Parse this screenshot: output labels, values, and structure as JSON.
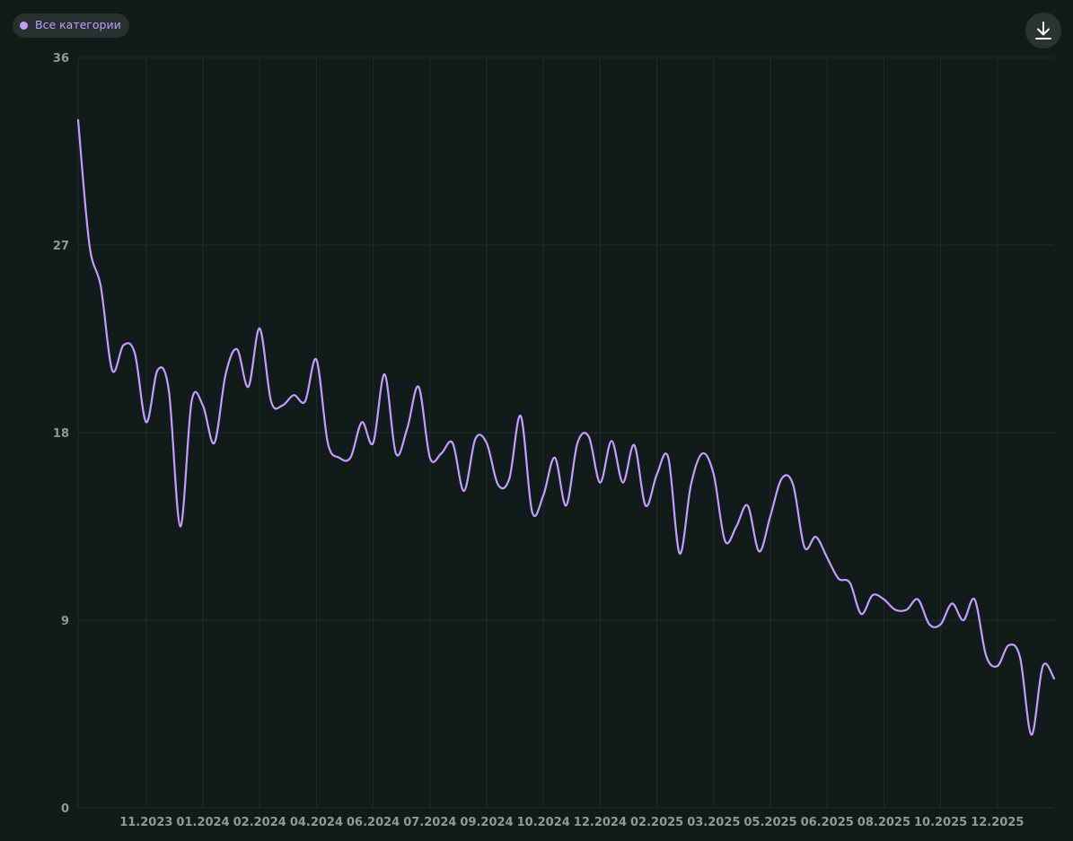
{
  "legend": {
    "label": "Все категории",
    "color": "#c59cff"
  },
  "toolbar": {
    "download_icon": "download-icon"
  },
  "colors": {
    "background": "#111c1a",
    "grid": "#1f2c29",
    "line": "#c59cff",
    "tick_text": "#8f9997"
  },
  "chart_data": {
    "type": "line",
    "title": "",
    "xlabel": "",
    "ylabel": "",
    "ylim": [
      0,
      36
    ],
    "y_ticks": [
      "36",
      "27",
      "18",
      "9",
      "0"
    ],
    "y_tick_values": [
      36,
      27,
      18,
      9,
      0
    ],
    "x_tick_labels": [
      "11.2023",
      "01.2024",
      "02.2024",
      "04.2024",
      "06.2024",
      "07.2024",
      "09.2024",
      "10.2024",
      "12.2024",
      "02.2025",
      "03.2025",
      "05.2025",
      "06.2025",
      "08.2025",
      "10.2025",
      "12.2025"
    ],
    "x_tick_positions": [
      7,
      12,
      17,
      22,
      27,
      32,
      37,
      42,
      47,
      52,
      57,
      62,
      67,
      72,
      77,
      82
    ],
    "x_range": [
      1,
      87
    ],
    "grid": true,
    "legend_position": "top-left",
    "series": [
      {
        "name": "Все категории",
        "color": "#c59cff",
        "x": [
          1,
          2,
          3,
          4,
          5,
          6,
          7,
          8,
          9,
          10,
          11,
          12,
          13,
          14,
          15,
          16,
          17,
          18,
          19,
          20,
          21,
          22,
          23,
          24,
          25,
          26,
          27,
          28,
          29,
          30,
          31,
          32,
          33,
          34,
          35,
          36,
          37,
          38,
          39,
          40,
          41,
          42,
          43,
          44,
          45,
          46,
          47,
          48,
          49,
          50,
          51,
          52,
          53,
          54,
          55,
          56,
          57,
          58,
          59,
          60,
          61,
          62,
          63,
          64,
          65,
          66,
          67,
          68,
          69,
          70,
          71,
          72,
          73,
          74,
          75,
          76,
          77,
          78,
          79,
          80,
          81,
          82,
          83,
          84,
          85,
          86,
          87
        ],
        "values": [
          33.0,
          27.0,
          25.0,
          21.0,
          22.2,
          21.8,
          18.5,
          21.0,
          20.0,
          13.5,
          19.5,
          19.3,
          17.5,
          20.8,
          22.0,
          20.2,
          23.0,
          19.5,
          19.3,
          19.8,
          19.5,
          21.5,
          17.5,
          16.8,
          16.8,
          18.5,
          17.5,
          20.8,
          17.0,
          18.2,
          20.2,
          16.8,
          17.0,
          17.5,
          15.2,
          17.7,
          17.5,
          15.5,
          15.8,
          18.8,
          14.2,
          15.0,
          16.8,
          14.5,
          17.5,
          17.8,
          15.6,
          17.6,
          15.6,
          17.4,
          14.5,
          16.0,
          16.8,
          12.2,
          15.5,
          17.0,
          16.0,
          12.8,
          13.5,
          14.5,
          12.3,
          14.0,
          15.8,
          15.5,
          12.5,
          13.0,
          12.0,
          11.0,
          10.8,
          9.3,
          10.2,
          10.0,
          9.5,
          9.5,
          10.0,
          8.8,
          8.8,
          9.8,
          9.0,
          10.0,
          7.3,
          6.8,
          7.8,
          7.2,
          3.5,
          6.8,
          6.2
        ]
      }
    ]
  }
}
